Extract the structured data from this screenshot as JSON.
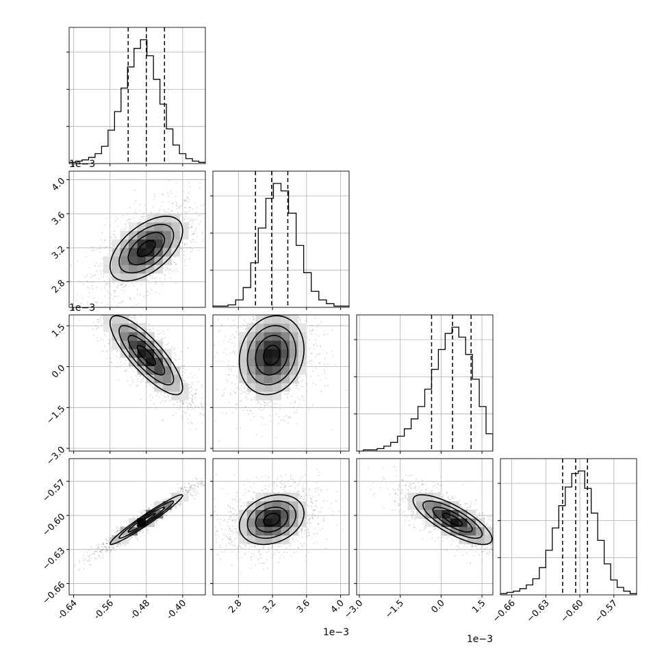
{
  "chart_data": {
    "type": "corner",
    "grid": true,
    "parameters": [
      {
        "range": [
          -0.65,
          -0.35
        ],
        "ticks": [
          "-0.64",
          "-0.56",
          "-0.48",
          "-0.40"
        ],
        "tick_values": [
          -0.64,
          -0.56,
          -0.48,
          -0.4
        ],
        "quantiles": [
          -0.52,
          -0.48,
          -0.44
        ],
        "histogram": [
          1,
          2,
          3,
          5,
          8,
          14,
          27,
          42,
          61,
          78,
          93,
          100,
          87,
          68,
          48,
          28,
          15,
          8,
          4,
          2,
          1
        ],
        "offset_label": ""
      },
      {
        "range": [
          2.5,
          4.1
        ],
        "ticks": [
          "2.8",
          "3.2",
          "3.6",
          "4.0"
        ],
        "tick_values": [
          2.8,
          3.2,
          3.6,
          4.0
        ],
        "quantiles": [
          3.0,
          3.19,
          3.38
        ],
        "histogram": [
          1,
          1,
          2,
          6,
          16,
          36,
          64,
          88,
          100,
          94,
          76,
          50,
          28,
          13,
          6,
          3,
          1,
          1
        ],
        "offset_label": "1e−3"
      },
      {
        "range": [
          -3.1,
          1.9
        ],
        "ticks": [
          "−3.0",
          "−1.5",
          "0.0",
          "1.5"
        ],
        "tick_values": [
          -3.0,
          -1.5,
          0.0,
          1.5
        ],
        "quantiles": [
          -0.35,
          0.42,
          1.1
        ],
        "histogram": [
          0,
          1,
          1,
          2,
          4,
          7,
          12,
          18,
          26,
          36,
          50,
          66,
          82,
          95,
          100,
          92,
          78,
          58,
          36,
          14
        ],
        "offset_label": "1e−3"
      },
      {
        "range": [
          -0.67,
          -0.55
        ],
        "ticks": [
          "−0.66",
          "−0.63",
          "−0.60",
          "−0.57"
        ],
        "tick_values": [
          -0.66,
          -0.63,
          -0.6,
          -0.57
        ],
        "quantiles": [
          -0.6152,
          -0.6037,
          -0.5933
        ],
        "histogram": [
          1,
          2,
          3,
          5,
          8,
          13,
          22,
          36,
          54,
          72,
          87,
          98,
          100,
          86,
          66,
          44,
          25,
          12,
          6,
          3,
          1
        ],
        "offset_label": ""
      }
    ],
    "y_ticks": {
      "row1": [
        "2.8",
        "3.2",
        "3.6",
        "4.0"
      ],
      "row2": [
        "−3.0",
        "−1.5",
        "0.0",
        "1.5"
      ],
      "row3": [
        "−0.66",
        "−0.63",
        "−0.60",
        "−0.57"
      ]
    },
    "correlations": {
      "1-0": 0.55,
      "2-0": -0.82,
      "2-1": 0.15,
      "3-0": 0.97,
      "3-1": 0.25,
      "3-2": -0.78
    }
  }
}
